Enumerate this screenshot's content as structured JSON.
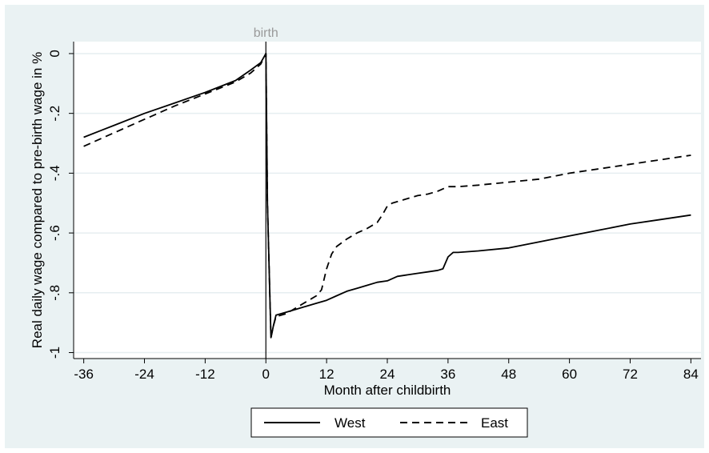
{
  "chart_data": {
    "type": "line",
    "xlabel": "Month after childbirth",
    "ylabel": "Real daily wage compared to pre-birth wage in %",
    "xlim": [
      -38,
      86
    ],
    "ylim": [
      -1.02,
      0.04
    ],
    "xticks": [
      -36,
      -24,
      -12,
      0,
      12,
      24,
      36,
      48,
      60,
      72,
      84
    ],
    "yticks": [
      0,
      -0.2,
      -0.4,
      -0.6,
      -0.8,
      -1
    ],
    "ytick_labels": [
      "0",
      "-.2",
      "-.4",
      "-.6",
      "-.8",
      "-1"
    ],
    "grid": "horizontal",
    "annotations": [
      {
        "text": "birth",
        "x": 0
      }
    ],
    "legend_position": "bottom",
    "series": [
      {
        "name": "West",
        "style": "solid",
        "color": "#000000",
        "x": [
          -36,
          -30,
          -24,
          -18,
          -12,
          -6,
          -3,
          -1,
          0,
          0.3,
          1,
          1.5,
          2,
          4,
          6,
          8,
          10,
          12,
          14,
          16,
          18,
          20,
          22,
          24,
          26,
          28,
          30,
          32,
          34,
          35,
          36,
          37,
          38,
          42,
          48,
          54,
          60,
          66,
          72,
          78,
          84
        ],
        "y": [
          -0.28,
          -0.24,
          -0.2,
          -0.165,
          -0.13,
          -0.09,
          -0.055,
          -0.03,
          0,
          -0.5,
          -0.95,
          -0.91,
          -0.875,
          -0.865,
          -0.855,
          -0.845,
          -0.835,
          -0.825,
          -0.81,
          -0.795,
          -0.785,
          -0.775,
          -0.765,
          -0.76,
          -0.745,
          -0.74,
          -0.735,
          -0.73,
          -0.725,
          -0.72,
          -0.68,
          -0.665,
          -0.665,
          -0.66,
          -0.65,
          -0.63,
          -0.61,
          -0.59,
          -0.57,
          -0.555,
          -0.54
        ]
      },
      {
        "name": "East",
        "style": "dashed",
        "color": "#000000",
        "x": [
          -36,
          -30,
          -24,
          -18,
          -12,
          -6,
          -3,
          -1,
          0,
          0.3,
          1,
          1.5,
          2,
          4,
          6,
          8,
          10,
          11,
          12,
          13,
          14,
          16,
          18,
          20,
          22,
          23,
          24,
          25,
          26,
          28,
          30,
          32,
          34,
          36,
          38,
          42,
          48,
          54,
          60,
          66,
          72,
          78,
          82,
          84
        ],
        "y": [
          -0.31,
          -0.265,
          -0.22,
          -0.175,
          -0.135,
          -0.095,
          -0.065,
          -0.035,
          0,
          -0.5,
          -0.95,
          -0.91,
          -0.88,
          -0.87,
          -0.85,
          -0.83,
          -0.81,
          -0.79,
          -0.72,
          -0.67,
          -0.645,
          -0.62,
          -0.6,
          -0.585,
          -0.565,
          -0.54,
          -0.51,
          -0.5,
          -0.495,
          -0.485,
          -0.475,
          -0.47,
          -0.46,
          -0.445,
          -0.445,
          -0.44,
          -0.43,
          -0.42,
          -0.4,
          -0.385,
          -0.37,
          -0.355,
          -0.345,
          -0.34
        ]
      }
    ]
  }
}
